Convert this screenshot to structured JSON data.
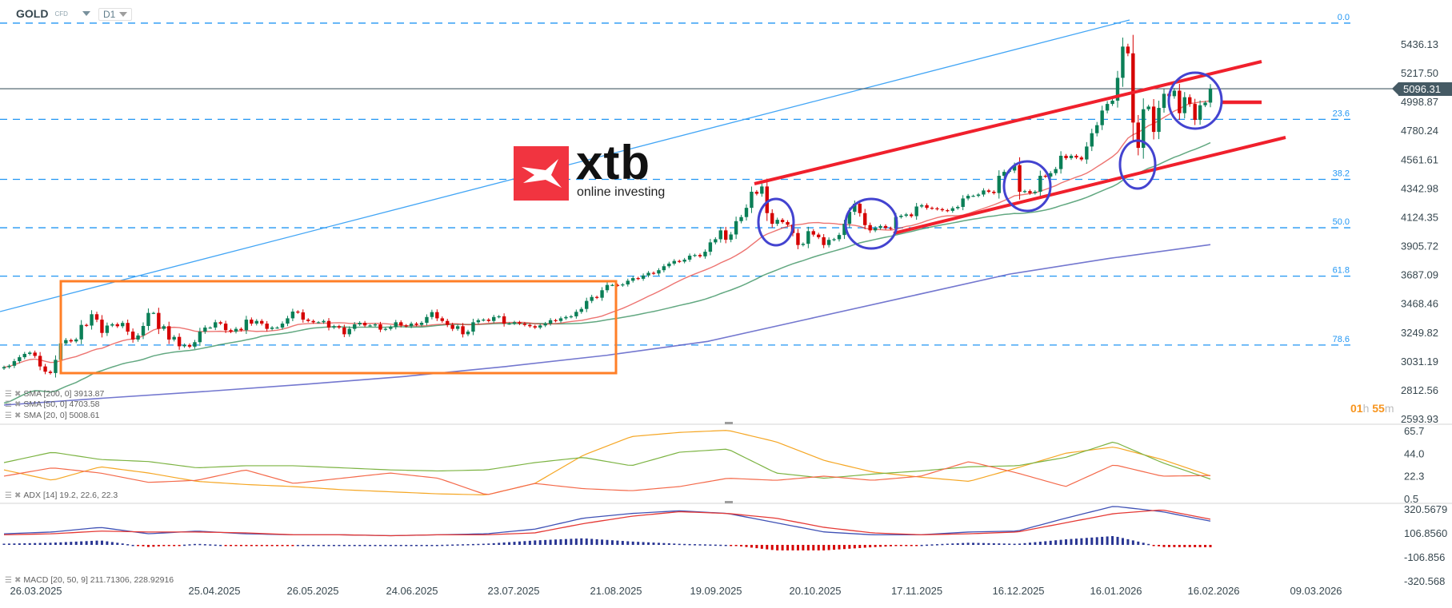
{
  "header": {
    "symbol": "GOLD",
    "instrument_type": "CFD",
    "timeframe": "D1"
  },
  "logo": {
    "brand": "xtb",
    "tagline": "online investing"
  },
  "current_price": {
    "value": "5096.31",
    "color": "#455a64"
  },
  "countdown": {
    "hours": "01",
    "h": "h",
    "minutes": "55",
    "m": "m",
    "color": "#f7941d"
  },
  "indicators": {
    "sma200": {
      "label": "SMA [200, 0] 3913.87",
      "color": "#5b5fc7"
    },
    "sma50": {
      "label": "SMA [50, 0] 4703.58",
      "color": "#2e8b57"
    },
    "sma20": {
      "label": "SMA [20, 0] 5008.61",
      "color": "#e53935"
    },
    "adx": {
      "label": "ADX [14] 19.2, 22.6, 22.3"
    },
    "macd": {
      "label": "MACD [20, 50, 9] 211.71306, 228.92916"
    }
  },
  "chart_data": {
    "type": "candlestick",
    "colors": {
      "up": "#0b7f57",
      "down": "#d50000",
      "fib": "#2196f3",
      "trend_blue": "#42a5f5",
      "range_box": "#ff7f27",
      "channel": "#f0202c",
      "circles": "#4343d0"
    },
    "close": [
      2985,
      2995,
      3030,
      3060,
      3085,
      3095,
      3070,
      2990,
      2950,
      2940,
      3040,
      3165,
      3190,
      3180,
      3195,
      3305,
      3300,
      3386,
      3345,
      3244,
      3300,
      3310,
      3295,
      3320,
      3254,
      3194,
      3225,
      3297,
      3396,
      3396,
      3275,
      3295,
      3194,
      3214,
      3143,
      3153,
      3140,
      3174,
      3254,
      3285,
      3285,
      3325,
      3315,
      3265,
      3254,
      3275,
      3265,
      3345,
      3315,
      3335,
      3315,
      3275,
      3285,
      3285,
      3315,
      3355,
      3406,
      3400,
      3345,
      3335,
      3325,
      3325,
      3335,
      3285,
      3295,
      3285,
      3234,
      3275,
      3309,
      3321,
      3301,
      3301,
      3309,
      3269,
      3275,
      3289,
      3325,
      3301,
      3295,
      3315,
      3305,
      3321,
      3365,
      3402,
      3355,
      3335,
      3305,
      3275,
      3295,
      3234,
      3254,
      3325,
      3341,
      3345,
      3335,
      3365,
      3370,
      3315,
      3315,
      3325,
      3315,
      3305,
      3295,
      3285,
      3301,
      3315,
      3341,
      3335,
      3355,
      3365,
      3370,
      3404,
      3426,
      3487,
      3517,
      3511,
      3568,
      3608,
      3608,
      3605,
      3612,
      3640,
      3660,
      3655,
      3680,
      3700,
      3695,
      3720,
      3750,
      3770,
      3790,
      3785,
      3800,
      3830,
      3835,
      3825,
      3860,
      3931,
      3955,
      4022,
      3951,
      3991,
      4092,
      4123,
      4193,
      4315,
      4300,
      4355,
      4153,
      4072,
      4102,
      4085,
      4065,
      4002,
      3911,
      3920,
      4016,
      3990,
      3970,
      3911,
      3950,
      3955,
      3987,
      4072,
      4163,
      4224,
      4153,
      4062,
      4022,
      4040,
      4055,
      4040,
      4035,
      4123,
      4133,
      4143,
      4130,
      4203,
      4213,
      4193,
      4189,
      4183,
      4175,
      4170,
      4190,
      4200,
      4264,
      4284,
      4284,
      4294,
      4325,
      4315,
      4305,
      4436,
      4466,
      4476,
      4517,
      4315,
      4320,
      4305,
      4315,
      4436,
      4430,
      4456,
      4487,
      4588,
      4570,
      4588,
      4575,
      4560,
      4658,
      4759,
      4820,
      4931,
      4981,
      5006,
      5179,
      5416,
      5365,
      4840,
      4648,
      4941,
      4961,
      4769,
      4951,
      5058,
      5040,
      5082,
      4911,
      5032,
      4981,
      4860,
      4971,
      4991,
      5096.31
    ],
    "sma200": [
      2697,
      2750,
      2800,
      2855,
      2915,
      2990,
      3075,
      3180,
      3350,
      3520,
      3690,
      3810,
      3913.87
    ],
    "price_axis": {
      "ticks": [
        "5436.13",
        "5217.50",
        "4998.87",
        "4780.24",
        "4561.61",
        "4342.98",
        "4124.35",
        "3905.72",
        "3687.09",
        "3468.46",
        "3249.82",
        "3031.19",
        "2812.56",
        "2593.93"
      ]
    },
    "fib_levels": [
      {
        "label": "0.0",
        "price": 5594
      },
      {
        "label": "23.6",
        "price": 4864
      },
      {
        "label": "38.2",
        "price": 4409
      },
      {
        "label": "50.0",
        "price": 4042
      },
      {
        "label": "61.8",
        "price": 3675
      },
      {
        "label": "78.6",
        "price": 3152
      }
    ],
    "x_ticks": [
      "26.03.2025",
      "25.04.2025",
      "26.05.2025",
      "24.06.2025",
      "23.07.2025",
      "21.08.2025",
      "19.09.2025",
      "20.10.2025",
      "17.11.2025",
      "16.12.2025",
      "16.01.2026",
      "16.02.2026",
      "09.03.2026"
    ],
    "adx": {
      "axis_ticks": [
        "65.7",
        "44.0",
        "22.3",
        "0.5"
      ],
      "adx": [
        28,
        18,
        31,
        25,
        17,
        14,
        12,
        9,
        7,
        5,
        4,
        15,
        42,
        60,
        64,
        66,
        55,
        37,
        26,
        21,
        17,
        30,
        44,
        50,
        38,
        22.3
      ],
      "plus_di": [
        35,
        45,
        38,
        36,
        30,
        32,
        32,
        30,
        28,
        27,
        28,
        35,
        40,
        32,
        45,
        48,
        25,
        20,
        24,
        27,
        31,
        32,
        40,
        55,
        35,
        19.2
      ],
      "minus_di": [
        22,
        30,
        25,
        16,
        18,
        28,
        15,
        20,
        25,
        20,
        4,
        15,
        10,
        8,
        12,
        20,
        18,
        22,
        18,
        22,
        36,
        25,
        12,
        33,
        22,
        22.6
      ],
      "colors": {
        "adx": "#f5a623",
        "plus_di": "#7cb342",
        "minus_di": "#f4694a"
      }
    },
    "macd": {
      "axis_ticks": [
        "320.5679",
        "106.8560",
        "-106.856",
        "-320.568"
      ],
      "macd": [
        99,
        115,
        156,
        99,
        123,
        99,
        90,
        90,
        82,
        90,
        99,
        140,
        238,
        280,
        304,
        280,
        197,
        115,
        90,
        90,
        115,
        123,
        238,
        345,
        296,
        211.71
      ],
      "signal": [
        90,
        99,
        123,
        115,
        115,
        107,
        90,
        90,
        82,
        90,
        90,
        107,
        189,
        255,
        296,
        280,
        238,
        156,
        107,
        90,
        99,
        115,
        197,
        279,
        312,
        228.93
      ],
      "colors": {
        "macd": "#3f51b5",
        "signal": "#e53935",
        "hist_up": "#283593",
        "hist_down": "#d50000"
      }
    }
  }
}
